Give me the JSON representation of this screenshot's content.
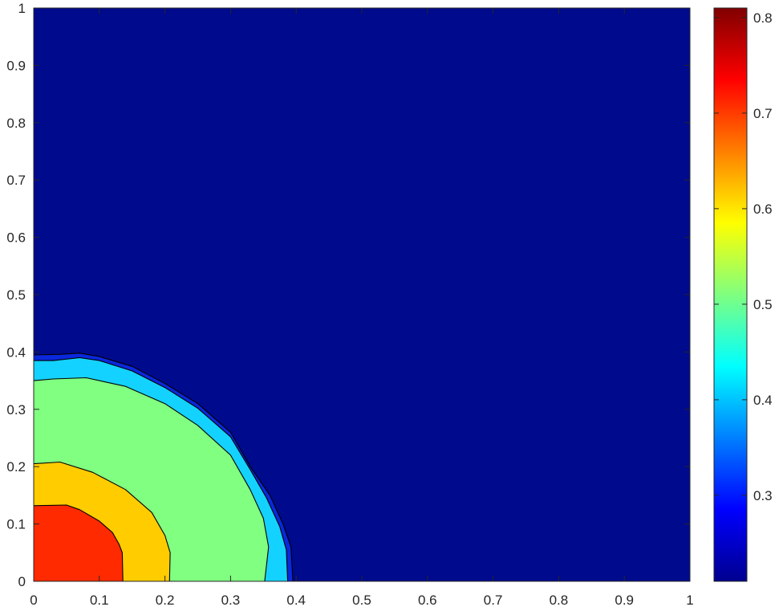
{
  "chart_data": {
    "type": "heatmap",
    "subtype": "filled-contour",
    "title": "",
    "xlabel": "",
    "ylabel": "",
    "xlim": [
      0,
      1
    ],
    "ylim": [
      0,
      1
    ],
    "xticks": [
      "0",
      "0.1",
      "0.2",
      "0.3",
      "0.4",
      "0.5",
      "0.6",
      "0.7",
      "0.8",
      "0.9",
      "1"
    ],
    "yticks": [
      "0",
      "0.1",
      "0.2",
      "0.3",
      "0.4",
      "0.5",
      "0.6",
      "0.7",
      "0.8",
      "0.9",
      "1"
    ],
    "grid": false,
    "colormap": "jet",
    "colorbar": {
      "limits": [
        0.21,
        0.81
      ],
      "ticks": [
        "0.3",
        "0.4",
        "0.5",
        "0.6",
        "0.7",
        "0.8"
      ],
      "tick_values": [
        0.3,
        0.4,
        0.5,
        0.6,
        0.7,
        0.8
      ]
    },
    "levels": [
      {
        "name": "background",
        "value": 0.215,
        "color": "#000a8c"
      },
      {
        "name": "band-0.27",
        "value": 0.27,
        "color": "#0a28dc",
        "boundary": [
          [
            0,
            0.395
          ],
          [
            0.04,
            0.396
          ],
          [
            0.07,
            0.398
          ],
          [
            0.1,
            0.392
          ],
          [
            0.15,
            0.375
          ],
          [
            0.2,
            0.345
          ],
          [
            0.25,
            0.31
          ],
          [
            0.3,
            0.26
          ],
          [
            0.33,
            0.2
          ],
          [
            0.36,
            0.15
          ],
          [
            0.38,
            0.1
          ],
          [
            0.392,
            0.06
          ],
          [
            0.395,
            0
          ]
        ]
      },
      {
        "name": "band-0.42",
        "value": 0.42,
        "color": "#14d2ff",
        "boundary": [
          [
            0,
            0.385
          ],
          [
            0.03,
            0.385
          ],
          [
            0.07,
            0.39
          ],
          [
            0.1,
            0.385
          ],
          [
            0.15,
            0.367
          ],
          [
            0.2,
            0.338
          ],
          [
            0.25,
            0.302
          ],
          [
            0.3,
            0.252
          ],
          [
            0.33,
            0.195
          ],
          [
            0.355,
            0.145
          ],
          [
            0.375,
            0.095
          ],
          [
            0.385,
            0.055
          ],
          [
            0.387,
            0
          ]
        ]
      },
      {
        "name": "band-0.52",
        "value": 0.52,
        "color": "#80ff80",
        "boundary": [
          [
            0,
            0.35
          ],
          [
            0.03,
            0.353
          ],
          [
            0.08,
            0.355
          ],
          [
            0.14,
            0.34
          ],
          [
            0.2,
            0.31
          ],
          [
            0.25,
            0.272
          ],
          [
            0.3,
            0.22
          ],
          [
            0.33,
            0.16
          ],
          [
            0.35,
            0.11
          ],
          [
            0.358,
            0.06
          ],
          [
            0.352,
            0
          ]
        ]
      },
      {
        "name": "band-0.63",
        "value": 0.63,
        "color": "#ffcc00",
        "boundary": [
          [
            0,
            0.205
          ],
          [
            0.04,
            0.208
          ],
          [
            0.09,
            0.19
          ],
          [
            0.14,
            0.16
          ],
          [
            0.18,
            0.12
          ],
          [
            0.2,
            0.08
          ],
          [
            0.208,
            0.05
          ],
          [
            0.207,
            0
          ]
        ]
      },
      {
        "name": "band-0.74",
        "value": 0.74,
        "color": "#ff2a00",
        "boundary": [
          [
            0,
            0.132
          ],
          [
            0.05,
            0.133
          ],
          [
            0.07,
            0.125
          ],
          [
            0.1,
            0.105
          ],
          [
            0.12,
            0.085
          ],
          [
            0.13,
            0.065
          ],
          [
            0.135,
            0.05
          ],
          [
            0.136,
            0
          ]
        ]
      }
    ]
  }
}
